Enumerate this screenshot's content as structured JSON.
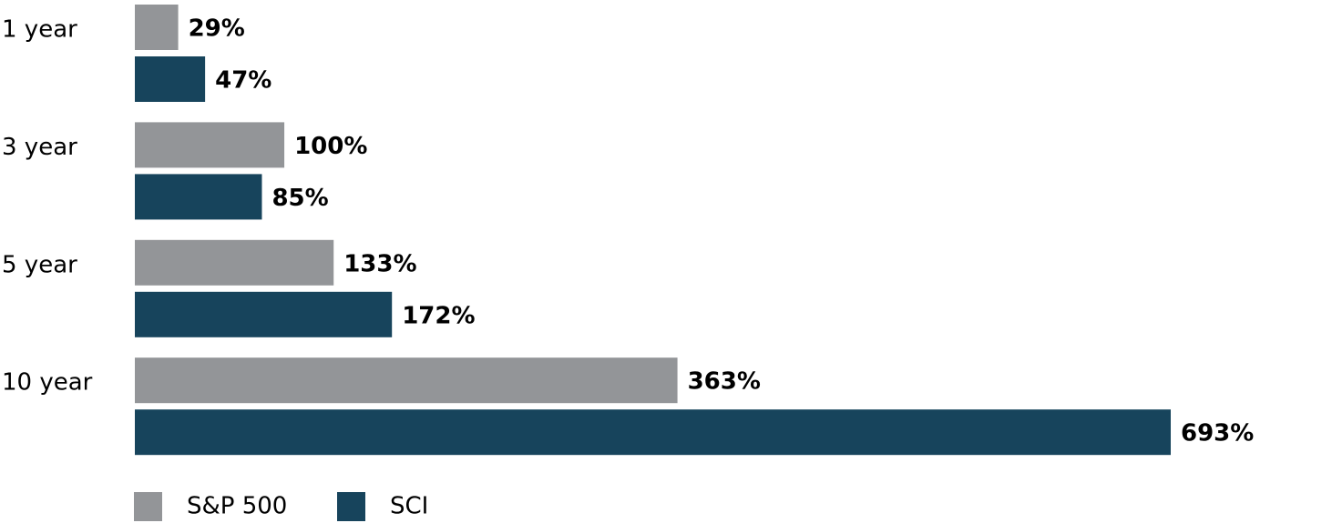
{
  "chart_data": {
    "type": "bar",
    "orientation": "horizontal",
    "categories": [
      "1 year",
      "3 year",
      "5 year",
      "10 year"
    ],
    "series": [
      {
        "name": "S&P 500",
        "color": "#939598",
        "values": [
          29,
          100,
          133,
          363
        ],
        "value_labels": [
          "29%",
          "100%",
          "133%",
          "363%"
        ]
      },
      {
        "name": "SCI",
        "color": "#17445c",
        "values": [
          47,
          85,
          172,
          693
        ],
        "value_labels": [
          "47%",
          "85%",
          "172%",
          "693%"
        ]
      }
    ]
  }
}
